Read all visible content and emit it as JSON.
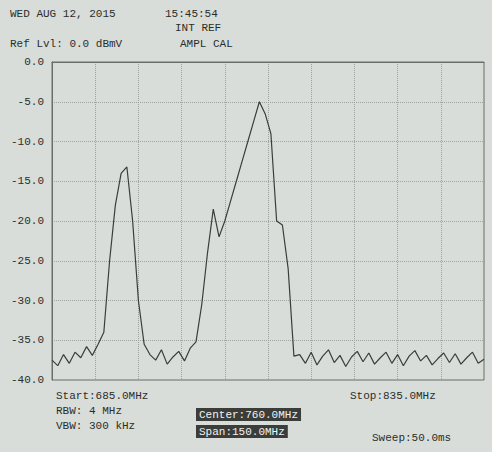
{
  "chart_data": {
    "type": "line",
    "annotations": [
      "WED AUG 12, 2015",
      "15:45:54",
      "INT REF",
      "Ref Lvl: 0.0 dBmV",
      "AMPL CAL",
      "Start:685.0MHz",
      "RBW: 4 MHz",
      "VBW: 300 kHz",
      "Center:760.0MHz",
      "Span:150.0MHz",
      "Stop:835.0MHz",
      "Sweep:50.0ms"
    ],
    "x": [
      685,
      687,
      689,
      691,
      693,
      695,
      697,
      699,
      701,
      703,
      705,
      707,
      709,
      711,
      713,
      715,
      717,
      719,
      721,
      723,
      725,
      727,
      729,
      731,
      733,
      735,
      737,
      739,
      741,
      743,
      745,
      747,
      749,
      751,
      753,
      755,
      757,
      759,
      761,
      763,
      765,
      767,
      769,
      771,
      773,
      775,
      777,
      779,
      781,
      783,
      785,
      787,
      789,
      791,
      793,
      795,
      797,
      799,
      801,
      803,
      805,
      807,
      809,
      811,
      813,
      815,
      817,
      819,
      821,
      823,
      825,
      827,
      829,
      831,
      833,
      835
    ],
    "values": [
      -37.5,
      -38.2,
      -36.8,
      -37.9,
      -36.5,
      -37.2,
      -35.8,
      -36.9,
      -35.5,
      -34.0,
      -25.0,
      -18.0,
      -14.0,
      -13.2,
      -20.0,
      -30.0,
      -35.5,
      -36.8,
      -37.5,
      -36.2,
      -38.0,
      -37.1,
      -36.4,
      -37.6,
      -36.0,
      -35.2,
      -30.5,
      -24.0,
      -18.5,
      -22.0,
      -20.0,
      -17.5,
      -15.0,
      -12.5,
      -10.0,
      -7.5,
      -5.0,
      -6.5,
      -9.0,
      -20.0,
      -20.5,
      -26.0,
      -37.0,
      -36.8,
      -37.9,
      -36.5,
      -38.1,
      -37.0,
      -36.2,
      -37.8,
      -36.9,
      -38.3,
      -37.1,
      -36.4,
      -37.7,
      -36.6,
      -38.0,
      -37.2,
      -36.5,
      -37.9,
      -36.8,
      -38.2,
      -37.0,
      -36.3,
      -37.6,
      -36.9,
      -38.1,
      -37.3,
      -36.6,
      -37.8,
      -36.7,
      -38.0,
      -37.2,
      -36.5,
      -37.9,
      -37.4
    ],
    "color": "#3a3d3a",
    "xlim": [
      685,
      835
    ],
    "xticks": [
      685,
      700,
      715,
      730,
      745,
      760,
      775,
      790,
      805,
      820,
      835
    ],
    "ylim": [
      -40,
      0
    ],
    "yticks": [
      {
        "value": -40,
        "label": "-40.0"
      },
      {
        "value": -35,
        "label": "-35.0"
      },
      {
        "value": -30,
        "label": "-30.0"
      },
      {
        "value": -25,
        "label": "-25.0"
      },
      {
        "value": -20,
        "label": "-20.0"
      },
      {
        "value": -15,
        "label": "-15.0"
      },
      {
        "value": -10,
        "label": "-10.0"
      },
      {
        "value": -5,
        "label": "-5.0"
      },
      {
        "value": 0,
        "label": "0.0"
      }
    ],
    "grid": true,
    "tick_labels": "y"
  }
}
